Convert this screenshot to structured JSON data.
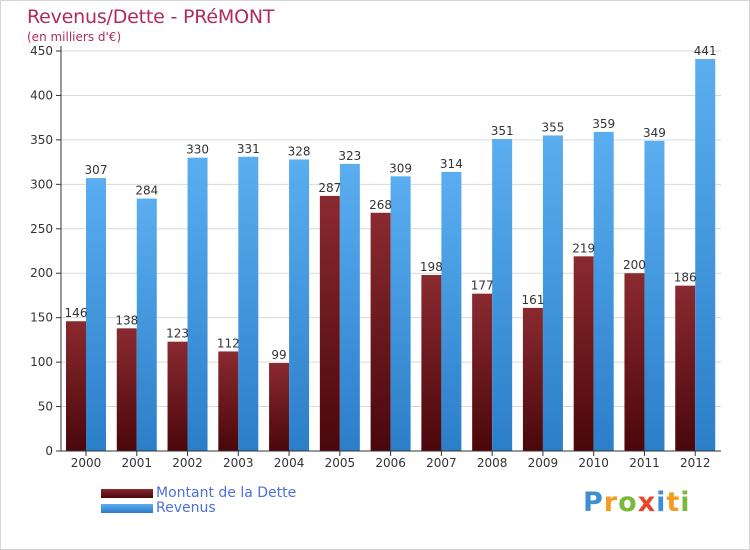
{
  "title": "Revenus/Dette - PRéMONT",
  "subtitle": "(en milliers d'€)",
  "colors": {
    "dette": "#6b1218",
    "revenus": "#4aa0e6",
    "axis": "#333333",
    "grid": "#d9d9d9",
    "title": "#b12a5c"
  },
  "logo": {
    "text": "Proxiti",
    "letters": [
      {
        "char": "P",
        "color": "#3d8fd1"
      },
      {
        "char": "r",
        "color": "#f39c1f"
      },
      {
        "char": "o",
        "color": "#7cb83b"
      },
      {
        "char": "x",
        "color": "#e8452c"
      },
      {
        "char": "i",
        "color": "#3d8fd1"
      },
      {
        "char": "t",
        "color": "#f39c1f"
      },
      {
        "char": "i",
        "color": "#7cb83b"
      }
    ]
  },
  "chart_data": {
    "type": "bar",
    "categories": [
      "2000",
      "2001",
      "2002",
      "2003",
      "2004",
      "2005",
      "2006",
      "2007",
      "2008",
      "2009",
      "2010",
      "2011",
      "2012"
    ],
    "series": [
      {
        "name": "Montant de la Dette",
        "values": [
          146,
          138,
          123,
          112,
          99,
          287,
          268,
          198,
          177,
          161,
          219,
          200,
          186
        ]
      },
      {
        "name": "Revenus",
        "values": [
          307,
          284,
          330,
          331,
          328,
          323,
          309,
          314,
          351,
          355,
          359,
          349,
          441
        ]
      }
    ],
    "ylim": [
      0,
      450
    ],
    "yticks": [
      0,
      50,
      100,
      150,
      200,
      250,
      300,
      350,
      400,
      450
    ],
    "grid": true,
    "legend": "bottom-left"
  }
}
